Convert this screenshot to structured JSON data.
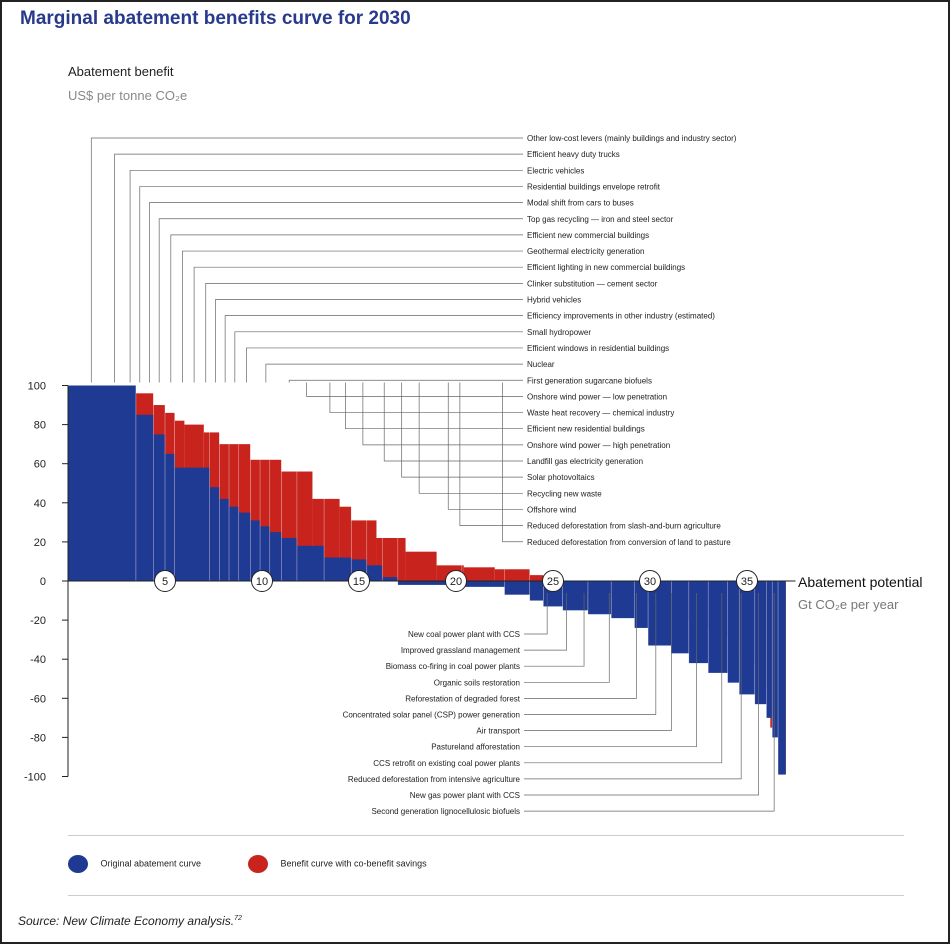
{
  "title": "Marginal abatement benefits curve for 2030",
  "source": "Source: New Climate Economy analysis.",
  "source_sup": "72",
  "legend": {
    "original": "Original abatement curve",
    "cobenefit": "Benefit curve with co-benefit savings"
  },
  "colors": {
    "original": "#1f3a93",
    "cobenefit": "#c8231d"
  },
  "chart_data": {
    "type": "bar",
    "title": "Marginal abatement benefits curve for 2030",
    "ylabel": "Abatement benefit",
    "ylabel_unit": "US$ per tonne CO₂e",
    "xlabel": "Abatement potential",
    "xlabel_unit": "Gt CO₂e per year",
    "ylim": [
      -100,
      100
    ],
    "xlim": [
      0,
      37
    ],
    "yticks": [
      100,
      80,
      60,
      40,
      20,
      0,
      -20,
      -40,
      -60,
      -80,
      -100
    ],
    "xticks": [
      5,
      10,
      15,
      20,
      25,
      30,
      35
    ],
    "grid": false,
    "legend_position": "bottom-left",
    "series": [
      {
        "name": "Original abatement curve",
        "color": "#1f3a93",
        "segments": [
          [
            0,
            3.5,
            100
          ],
          [
            3.5,
            4.4,
            85
          ],
          [
            4.4,
            5,
            75
          ],
          [
            5,
            5.5,
            65
          ],
          [
            5.5,
            7.3,
            58
          ],
          [
            7.3,
            7.8,
            48
          ],
          [
            7.8,
            8.3,
            42
          ],
          [
            8.3,
            8.8,
            38
          ],
          [
            8.8,
            9.4,
            35
          ],
          [
            9.4,
            9.9,
            31
          ],
          [
            9.9,
            10.4,
            28
          ],
          [
            10.4,
            11,
            25
          ],
          [
            11,
            11.8,
            22
          ],
          [
            11.8,
            13.2,
            18
          ],
          [
            13.2,
            14.6,
            12
          ],
          [
            14.6,
            15.4,
            11
          ],
          [
            15.4,
            16.2,
            8
          ],
          [
            16.2,
            17,
            2
          ],
          [
            17,
            20.3,
            -2
          ],
          [
            20.3,
            22.5,
            -3
          ],
          [
            22.5,
            23.8,
            -7
          ],
          [
            23.8,
            24.5,
            -10
          ],
          [
            24.5,
            25.5,
            -13
          ],
          [
            25.5,
            26.8,
            -15
          ],
          [
            26.8,
            28,
            -17
          ],
          [
            28,
            29.2,
            -19
          ],
          [
            29.2,
            29.9,
            -24
          ],
          [
            29.9,
            31.1,
            -33
          ],
          [
            31.1,
            32,
            -37
          ],
          [
            32,
            33,
            -42
          ],
          [
            33,
            34,
            -47
          ],
          [
            34,
            34.6,
            -52
          ],
          [
            34.6,
            35.4,
            -58
          ],
          [
            35.4,
            36,
            -63
          ],
          [
            36,
            36.3,
            -70
          ],
          [
            36.3,
            36.6,
            -80
          ],
          [
            36.6,
            37,
            -99
          ]
        ]
      },
      {
        "name": "Benefit curve with co-benefit savings",
        "color": "#c8231d",
        "segments": [
          [
            0,
            3.5,
            100
          ],
          [
            3.5,
            4.4,
            96
          ],
          [
            4.4,
            5,
            90
          ],
          [
            5,
            5.5,
            86
          ],
          [
            5.5,
            6,
            82
          ],
          [
            6,
            7,
            80
          ],
          [
            7,
            7.8,
            76
          ],
          [
            7.8,
            9.4,
            70
          ],
          [
            9.4,
            11,
            62
          ],
          [
            11,
            12.6,
            56
          ],
          [
            12.6,
            14,
            42
          ],
          [
            14,
            14.6,
            38
          ],
          [
            14.6,
            15.9,
            31
          ],
          [
            15.9,
            17.4,
            22
          ],
          [
            17.4,
            19,
            15
          ],
          [
            19,
            20.4,
            8
          ],
          [
            20.4,
            22,
            7
          ],
          [
            22,
            23.8,
            6
          ],
          [
            23.8,
            24.5,
            3
          ],
          [
            24.5,
            25.5,
            -2
          ],
          [
            25.5,
            27,
            -5
          ],
          [
            27,
            29,
            -8
          ],
          [
            29,
            30.3,
            -12
          ],
          [
            30.3,
            31.2,
            -16
          ],
          [
            31.2,
            32.5,
            -20
          ],
          [
            32.5,
            34,
            -25
          ],
          [
            34,
            34.6,
            -29
          ],
          [
            34.6,
            35.2,
            -36
          ],
          [
            35.2,
            35.8,
            -42
          ],
          [
            35.8,
            36.2,
            -55
          ],
          [
            36.2,
            36.6,
            -75
          ],
          [
            36.6,
            37,
            -99
          ]
        ]
      }
    ],
    "annotations_positive": [
      {
        "label": "Other low-cost levers (mainly buildings and industry sector)",
        "x": 1.2
      },
      {
        "label": "Efficient heavy duty trucks",
        "x": 2.4
      },
      {
        "label": "Electric vehicles",
        "x": 3.2
      },
      {
        "label": "Residential buildings envelope retrofit",
        "x": 3.7
      },
      {
        "label": "Modal shift from cars to buses",
        "x": 4.2
      },
      {
        "label": "Top gas recycling — iron and steel sector",
        "x": 4.7
      },
      {
        "label": "Efficient new commercial buildings",
        "x": 5.3
      },
      {
        "label": "Geothermal electricity generation",
        "x": 5.9
      },
      {
        "label": "Efficient lighting in new commercial buildings",
        "x": 6.5
      },
      {
        "label": "Clinker substitution — cement sector",
        "x": 7.1
      },
      {
        "label": "Hybrid vehicles",
        "x": 7.6
      },
      {
        "label": "Efficiency improvements in other industry (estimated)",
        "x": 8.1
      },
      {
        "label": "Small hydropower",
        "x": 8.6
      },
      {
        "label": "Efficient windows in residential buildings",
        "x": 9.2
      },
      {
        "label": "Nuclear",
        "x": 10.2
      },
      {
        "label": "First generation sugarcane biofuels",
        "x": 11.4
      },
      {
        "label": "Onshore wind power — low penetration",
        "x": 12.3
      },
      {
        "label": "Waste heat recovery — chemical industry",
        "x": 13.5
      },
      {
        "label": "Efficient new residential buildings",
        "x": 14.3
      },
      {
        "label": "Onshore wind power — high penetration",
        "x": 15.2
      },
      {
        "label": "Landfill gas electricity generation",
        "x": 16.3
      },
      {
        "label": "Solar photovoltaics",
        "x": 17.2
      },
      {
        "label": "Recycling new waste",
        "x": 18.1
      },
      {
        "label": "Offshore wind",
        "x": 19.6
      },
      {
        "label": "Reduced deforestation from slash-and-burn agriculture",
        "x": 20.2
      },
      {
        "label": "Reduced deforestation from conversion of land to pasture",
        "x": 22.4
      }
    ],
    "annotations_negative": [
      {
        "label": "New coal power plant with CCS",
        "x": 24.7
      },
      {
        "label": "Improved grassland management",
        "x": 25.7
      },
      {
        "label": "Biomass co-firing in coal power plants",
        "x": 26.6
      },
      {
        "label": "Organic soils restoration",
        "x": 27.9
      },
      {
        "label": "Reforestation of degraded forest",
        "x": 29.3
      },
      {
        "label": "Concentrated solar panel (CSP) power generation",
        "x": 30.3
      },
      {
        "label": "Air transport",
        "x": 31.1
      },
      {
        "label": "Pastureland afforestation",
        "x": 32.4
      },
      {
        "label": "CCS retrofit on existing coal power plants",
        "x": 33.7
      },
      {
        "label": "Reduced deforestation from intensive agriculture",
        "x": 34.7
      },
      {
        "label": "New gas power plant with CCS",
        "x": 35.6
      },
      {
        "label": "Second generation lignocellulosic biofuels",
        "x": 36.4
      }
    ]
  }
}
